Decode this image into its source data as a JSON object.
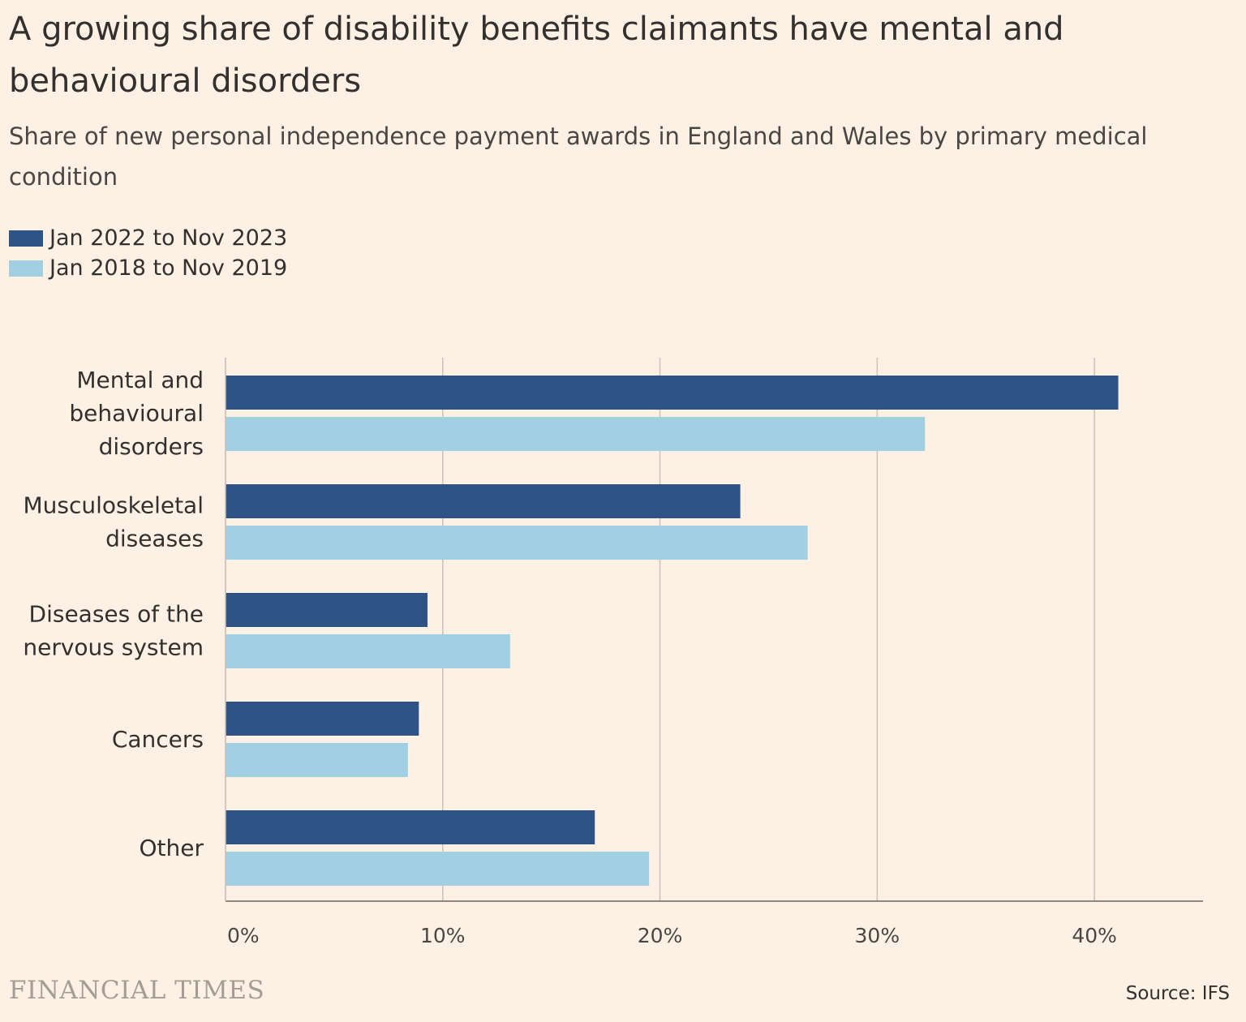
{
  "title": "A growing share of disability benefits claimants have mental and behavioural disorders",
  "subtitle": "Share of new personal independence payment awards in England and Wales by primary medical condition",
  "brand": "FINANCIAL TIMES",
  "source": "Source: IFS",
  "chart_data": {
    "type": "bar",
    "orientation": "horizontal",
    "categories": [
      [
        "Mental and",
        "behavioural",
        "disorders"
      ],
      [
        "Musculoskeletal",
        "diseases"
      ],
      [
        "Diseases of the",
        "nervous system"
      ],
      [
        "Cancers"
      ],
      [
        "Other"
      ]
    ],
    "series": [
      {
        "name": "Jan 2022 to Nov 2023",
        "color": "#2e5486",
        "values": [
          41.1,
          23.7,
          9.3,
          8.9,
          17.0
        ]
      },
      {
        "name": "Jan 2018 to Nov 2019",
        "color": "#a1d0e3",
        "values": [
          32.2,
          26.8,
          13.1,
          8.4,
          19.5
        ]
      }
    ],
    "xlim": [
      0,
      45
    ],
    "xticks": [
      0,
      10,
      20,
      30,
      40
    ],
    "xtick_labels": [
      "0%",
      "10%",
      "20%",
      "30%",
      "40%"
    ],
    "grid": true,
    "legend": "top-left"
  }
}
